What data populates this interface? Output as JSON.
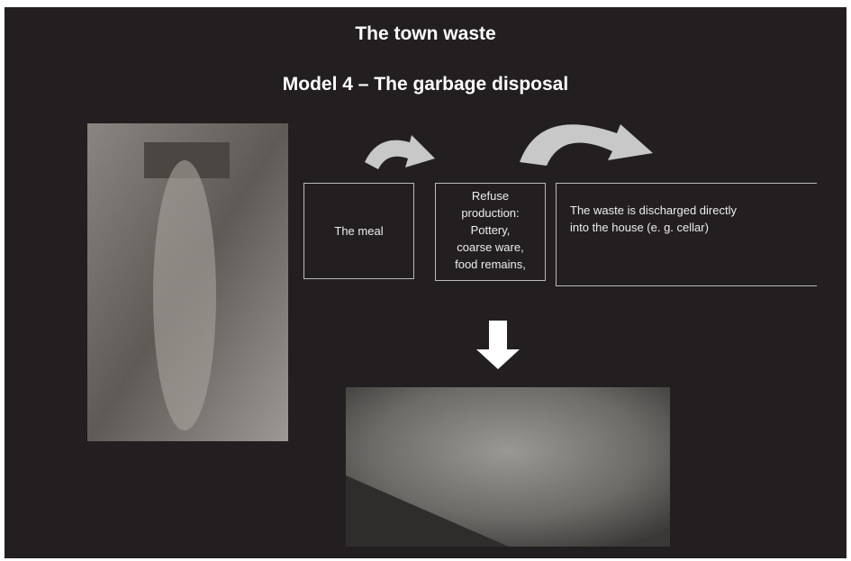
{
  "header": {
    "title": "The town waste",
    "subtitle": "Model 4 – The garbage disposal"
  },
  "boxes": [
    {
      "lines": [
        "The meal"
      ]
    },
    {
      "lines": [
        "Refuse",
        "production:",
        "Pottery,",
        "coarse ware,",
        "food remains,"
      ]
    },
    {
      "lines": [
        "The waste is discharged directly",
        "into the house (e. g. cellar)"
      ]
    }
  ]
}
